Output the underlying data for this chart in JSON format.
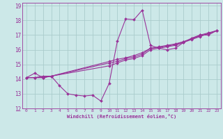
{
  "title": "",
  "xlabel": "Windchill (Refroidissement éolien,°C)",
  "ylabel": "",
  "bg_color": "#cce8e8",
  "line_color": "#993399",
  "grid_color": "#aacccc",
  "xlim": [
    -0.5,
    23.5
  ],
  "ylim": [
    12,
    19.2
  ],
  "yticks": [
    12,
    13,
    14,
    15,
    16,
    17,
    18,
    19
  ],
  "xticks": [
    0,
    1,
    2,
    3,
    4,
    5,
    6,
    7,
    8,
    9,
    10,
    11,
    12,
    13,
    14,
    15,
    16,
    17,
    18,
    19,
    20,
    21,
    22,
    23
  ],
  "lines": [
    {
      "x": [
        0,
        1,
        2,
        3,
        4,
        5,
        6,
        7,
        8,
        9,
        10,
        11,
        12,
        13,
        14,
        15,
        16,
        17,
        18,
        19,
        20,
        21,
        22,
        23
      ],
      "y": [
        14.1,
        14.4,
        14.1,
        14.2,
        13.55,
        13.0,
        12.9,
        12.85,
        12.9,
        12.5,
        13.7,
        16.6,
        18.1,
        18.05,
        18.7,
        16.3,
        16.1,
        16.0,
        16.1,
        16.5,
        16.8,
        17.0,
        17.0,
        17.3
      ]
    },
    {
      "x": [
        0,
        1,
        2,
        3,
        10,
        11,
        12,
        13,
        14,
        15,
        16,
        17,
        18,
        19,
        20,
        21,
        22,
        23
      ],
      "y": [
        14.1,
        14.1,
        14.1,
        14.2,
        14.9,
        15.1,
        15.3,
        15.4,
        15.6,
        16.0,
        16.1,
        16.2,
        16.3,
        16.5,
        16.7,
        16.9,
        17.1,
        17.3
      ]
    },
    {
      "x": [
        0,
        1,
        2,
        3,
        10,
        11,
        12,
        13,
        14,
        15,
        16,
        17,
        18,
        19,
        20,
        21,
        22,
        23
      ],
      "y": [
        14.1,
        14.1,
        14.1,
        14.2,
        15.1,
        15.2,
        15.4,
        15.5,
        15.7,
        16.1,
        16.15,
        16.25,
        16.35,
        16.55,
        16.75,
        16.95,
        17.1,
        17.3
      ]
    },
    {
      "x": [
        0,
        1,
        2,
        3,
        10,
        11,
        12,
        13,
        14,
        15,
        16,
        17,
        18,
        19,
        20,
        21,
        22,
        23
      ],
      "y": [
        14.1,
        14.1,
        14.2,
        14.2,
        15.2,
        15.35,
        15.45,
        15.6,
        15.8,
        16.1,
        16.2,
        16.3,
        16.4,
        16.55,
        16.75,
        17.0,
        17.15,
        17.3
      ]
    }
  ]
}
